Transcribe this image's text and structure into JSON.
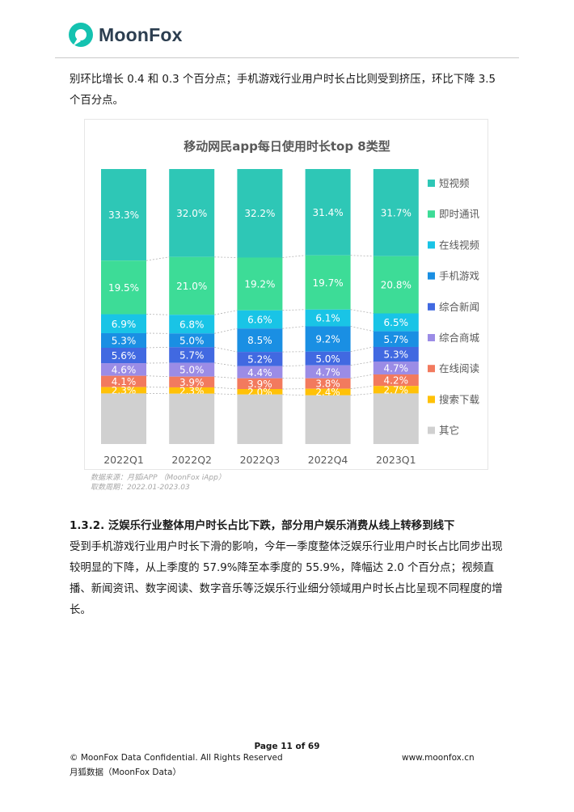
{
  "header": {
    "brand": "MoonFox"
  },
  "paragraph1": "别环比增长 0.4 和 0.3 个百分点；手机游戏行业用户时长占比则受到挤压，环比下降 3.5 个百分点。",
  "chart_data": {
    "type": "bar",
    "stacked": true,
    "title": "移动网民app每日使用时长top 8类型",
    "categories": [
      "2022Q1",
      "2022Q2",
      "2022Q3",
      "2022Q4",
      "2023Q1"
    ],
    "ylim": [
      0,
      100
    ],
    "watermark": "MoonFox",
    "legend_position": "right",
    "series": [
      {
        "name": "短视频",
        "color": "#2ec7b6",
        "values": [
          33.3,
          32.0,
          32.2,
          31.4,
          31.7
        ],
        "labels": [
          "33.3%",
          "32.0%",
          "32.2%",
          "31.4%",
          "31.7%"
        ]
      },
      {
        "name": "即时通讯",
        "color": "#3ddc97",
        "values": [
          19.5,
          21.0,
          19.2,
          19.7,
          20.8
        ],
        "labels": [
          "19.5%",
          "21.0%",
          "19.2%",
          "19.7%",
          "20.8%"
        ]
      },
      {
        "name": "在线视频",
        "color": "#19c4e6",
        "values": [
          6.9,
          6.8,
          6.6,
          6.1,
          6.5
        ],
        "labels": [
          "6.9%",
          "6.8%",
          "6.6%",
          "6.1%",
          "6.5%"
        ]
      },
      {
        "name": "手机游戏",
        "color": "#1a8fe3",
        "values": [
          5.3,
          5.0,
          8.5,
          9.2,
          5.7
        ],
        "labels": [
          "5.3%",
          "5.0%",
          "8.5%",
          "9.2%",
          "5.7%"
        ]
      },
      {
        "name": "综合新闻",
        "color": "#4169e1",
        "values": [
          5.6,
          5.7,
          5.2,
          5.0,
          5.3
        ],
        "labels": [
          "5.6%",
          "5.7%",
          "5.2%",
          "5.0%",
          "5.3%"
        ]
      },
      {
        "name": "综合商城",
        "color": "#9b8ce6",
        "values": [
          4.6,
          5.0,
          4.4,
          4.7,
          4.7
        ],
        "labels": [
          "4.6%",
          "5.0%",
          "4.4%",
          "4.7%",
          "4.7%"
        ]
      },
      {
        "name": "在线阅读",
        "color": "#f27a5e",
        "values": [
          4.1,
          3.9,
          3.9,
          3.8,
          4.2
        ],
        "labels": [
          "4.1%",
          "3.9%",
          "3.9%",
          "3.8%",
          "4.2%"
        ]
      },
      {
        "name": "搜索下载",
        "color": "#ffc107",
        "values": [
          2.3,
          2.3,
          2.0,
          2.4,
          2.7
        ],
        "labels": [
          "2.3%",
          "2.3%",
          "2.0%",
          "2.4%",
          "2.7%"
        ]
      },
      {
        "name": "其它",
        "color": "#d0d0d0",
        "values": [
          18.4,
          18.3,
          18.0,
          17.7,
          18.4
        ],
        "labels": [
          "",
          "",
          "",
          "",
          ""
        ]
      }
    ]
  },
  "source_line1": "数据来源：月狐iAPP （MoonFox iApp）",
  "source_line2": "取数周期：2022.01-2023.03",
  "section_heading": "1.3.2. 泛娱乐行业整体用户时长占比下跌，部分用户娱乐消费从线上转移到线下",
  "paragraph2": "受到手机游戏行业用户时长下滑的影响，今年一季度整体泛娱乐行业用户时长占比同步出现较明显的下降，从上季度的 57.9%降至本季度的 55.9%，降幅达 2.0 个百分点；视频直播、新闻资讯、数字阅读、数字音乐等泛娱乐行业细分领域用户时长占比呈现不同程度的增长。",
  "footer": {
    "page": "Page  11 of 69",
    "copyright": "© MoonFox Data Confidential. All Rights Reserved",
    "website": "www.moonfox.cn",
    "company": "月狐数据（MoonFox Data）"
  }
}
